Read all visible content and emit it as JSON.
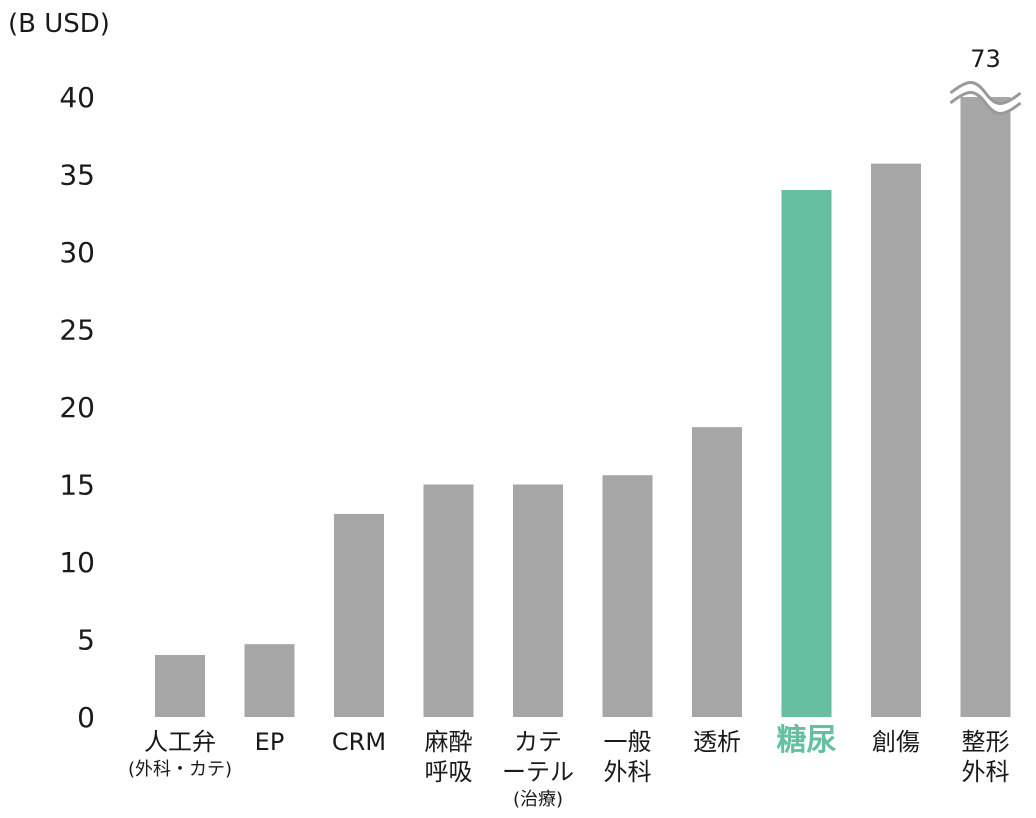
{
  "colors": {
    "bar": "#a6a6a6",
    "highlight": "#66bfa0",
    "text": "#1a1a1a"
  },
  "chart_data": {
    "type": "bar",
    "unit_label": "(B USD)",
    "ylim": [
      0,
      40
    ],
    "yticks": [
      "0",
      "5",
      "10",
      "15",
      "20",
      "25",
      "30",
      "35",
      "40"
    ],
    "grid": false,
    "legend": "none",
    "highlight_category": "糖尿",
    "broken_axis_value_label": "73",
    "categories": [
      {
        "label": [
          "人工弁"
        ],
        "sub": "(外科・カテ)",
        "value": 4.0
      },
      {
        "label": [
          "EP"
        ],
        "value": 4.7
      },
      {
        "label": [
          "CRM"
        ],
        "value": 13.1
      },
      {
        "label": [
          "麻酔",
          "呼吸"
        ],
        "value": 15.0
      },
      {
        "label": [
          "カテ",
          "ーテル"
        ],
        "sub": "(治療)",
        "value": 15.0
      },
      {
        "label": [
          "一般",
          "外科"
        ],
        "value": 15.6
      },
      {
        "label": [
          "透析"
        ],
        "value": 18.7
      },
      {
        "label": [
          "糖尿"
        ],
        "value": 34.0
      },
      {
        "label": [
          "創傷"
        ],
        "value": 35.7
      },
      {
        "label": [
          "整形",
          "外科"
        ],
        "value": 73,
        "broken": true
      }
    ]
  }
}
